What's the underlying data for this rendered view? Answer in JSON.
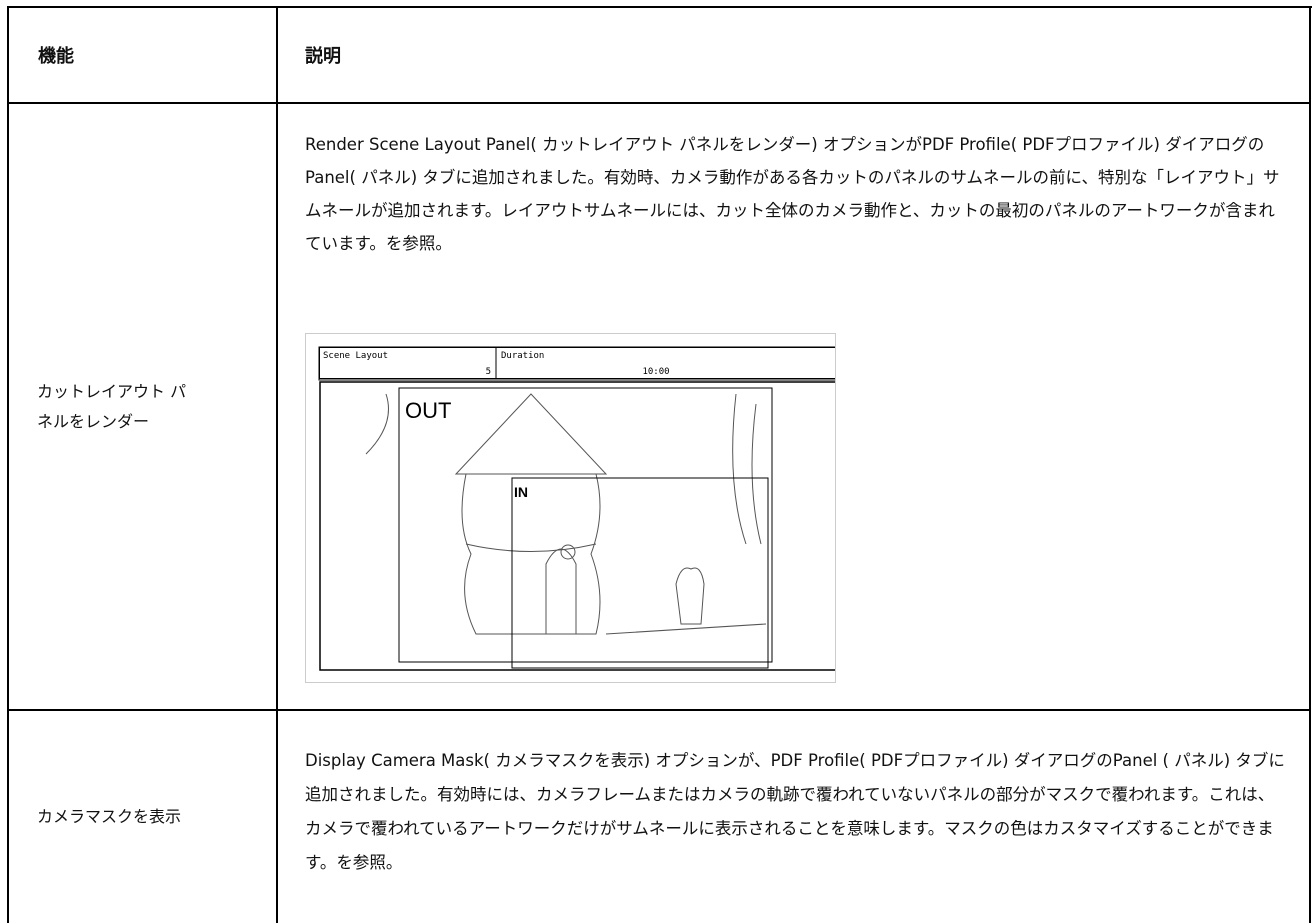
{
  "table": {
    "headers": [
      "機能",
      "説明"
    ],
    "rows": [
      [
        "カットレイアウト パネルをレンダー",
        "Render Scene Layout Panel( カットレイアウト パネルをレンダー) オプションがPDF Profile( PDFプロファイル) ダイアログのPanel( パネル) タブに追加されました。有効時、カメラ動作がある各カットのパネルのサムネールの前に、特別な「レイアウト」サムネールが追加されます。レイアウトサムネールには、カット全体のカメラ動作と、カットの最初のパネルのアートワークが含まれています。を参照。"
      ],
      [
        "カメラマスクを表示",
        "Display Camera Mask( カメラマスクを表示) オプションが、PDF Profile( PDFプロファイル) ダイアログのPanel ( パネル) タブに追加されました。有効時には、カメラフレームまたはカメラの軌跡で覆われていないパネルの部分がマスクで覆われます。これは、カメラで覆われているアートワークだけがサムネールに表示されることを意味します。マスクの色はカスタマイズすることができます。を参照。"
      ]
    ]
  },
  "figure": {
    "scene_label": "Scene Layout",
    "scene_number": "5",
    "duration_label": "Duration",
    "duration": "10:00",
    "out_label": "OUT",
    "in_label": "IN"
  }
}
